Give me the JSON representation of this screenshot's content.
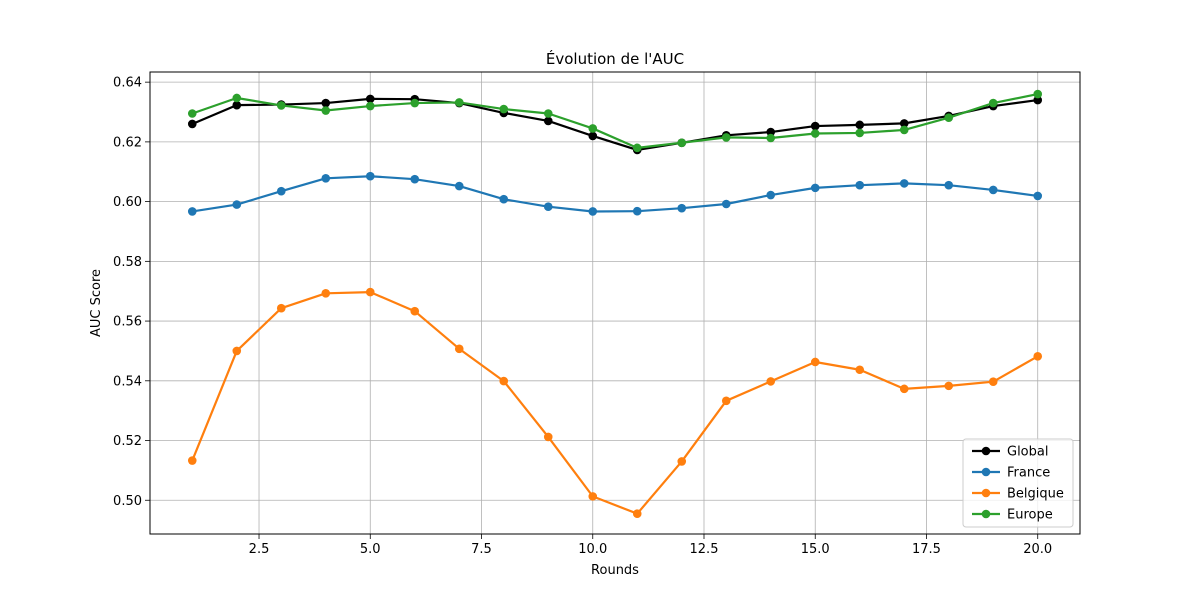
{
  "chart_data": {
    "type": "line",
    "title": "Évolution de l'AUC",
    "xlabel": "Rounds",
    "ylabel": "AUC Score",
    "x": [
      1,
      2,
      3,
      4,
      5,
      6,
      7,
      8,
      9,
      10,
      11,
      12,
      13,
      14,
      15,
      16,
      17,
      18,
      19,
      20
    ],
    "xlim": [
      0.05,
      20.95
    ],
    "ylim": [
      0.4887,
      0.6434
    ],
    "xticks": [
      2.5,
      5.0,
      7.5,
      10.0,
      12.5,
      15.0,
      17.5,
      20.0
    ],
    "xtick_labels": [
      "2.5",
      "5.0",
      "7.5",
      "10.0",
      "12.5",
      "15.0",
      "17.5",
      "20.0"
    ],
    "yticks": [
      0.5,
      0.52,
      0.54,
      0.56,
      0.58,
      0.6,
      0.62,
      0.64
    ],
    "ytick_labels": [
      "0.50",
      "0.52",
      "0.54",
      "0.56",
      "0.58",
      "0.60",
      "0.62",
      "0.64"
    ],
    "grid": true,
    "legend_position": "bottom-right",
    "series": [
      {
        "name": "Global",
        "color": "#000000",
        "values": [
          0.626,
          0.6323,
          0.6325,
          0.633,
          0.6344,
          0.6343,
          0.633,
          0.6297,
          0.627,
          0.622,
          0.6173,
          0.6197,
          0.6222,
          0.6233,
          0.6253,
          0.6257,
          0.6262,
          0.6287,
          0.632,
          0.634
        ]
      },
      {
        "name": "France",
        "color": "#1f77b4",
        "values": [
          0.5967,
          0.599,
          0.6035,
          0.6078,
          0.6085,
          0.6075,
          0.6052,
          0.6008,
          0.5983,
          0.5967,
          0.5968,
          0.5978,
          0.5992,
          0.6022,
          0.6046,
          0.6055,
          0.6061,
          0.6055,
          0.6039,
          0.6019
        ]
      },
      {
        "name": "Belgique",
        "color": "#ff7f0e",
        "values": [
          0.5133,
          0.55,
          0.5643,
          0.5693,
          0.5697,
          0.5633,
          0.5507,
          0.5399,
          0.5212,
          0.5013,
          0.4955,
          0.513,
          0.5333,
          0.5398,
          0.5463,
          0.5437,
          0.5373,
          0.5383,
          0.5397,
          0.5482
        ]
      },
      {
        "name": "Europe",
        "color": "#2ca02c",
        "values": [
          0.6295,
          0.6347,
          0.6322,
          0.6305,
          0.632,
          0.633,
          0.6332,
          0.631,
          0.6295,
          0.6245,
          0.618,
          0.6197,
          0.6215,
          0.6213,
          0.6228,
          0.623,
          0.624,
          0.6281,
          0.633,
          0.636
        ]
      }
    ]
  }
}
